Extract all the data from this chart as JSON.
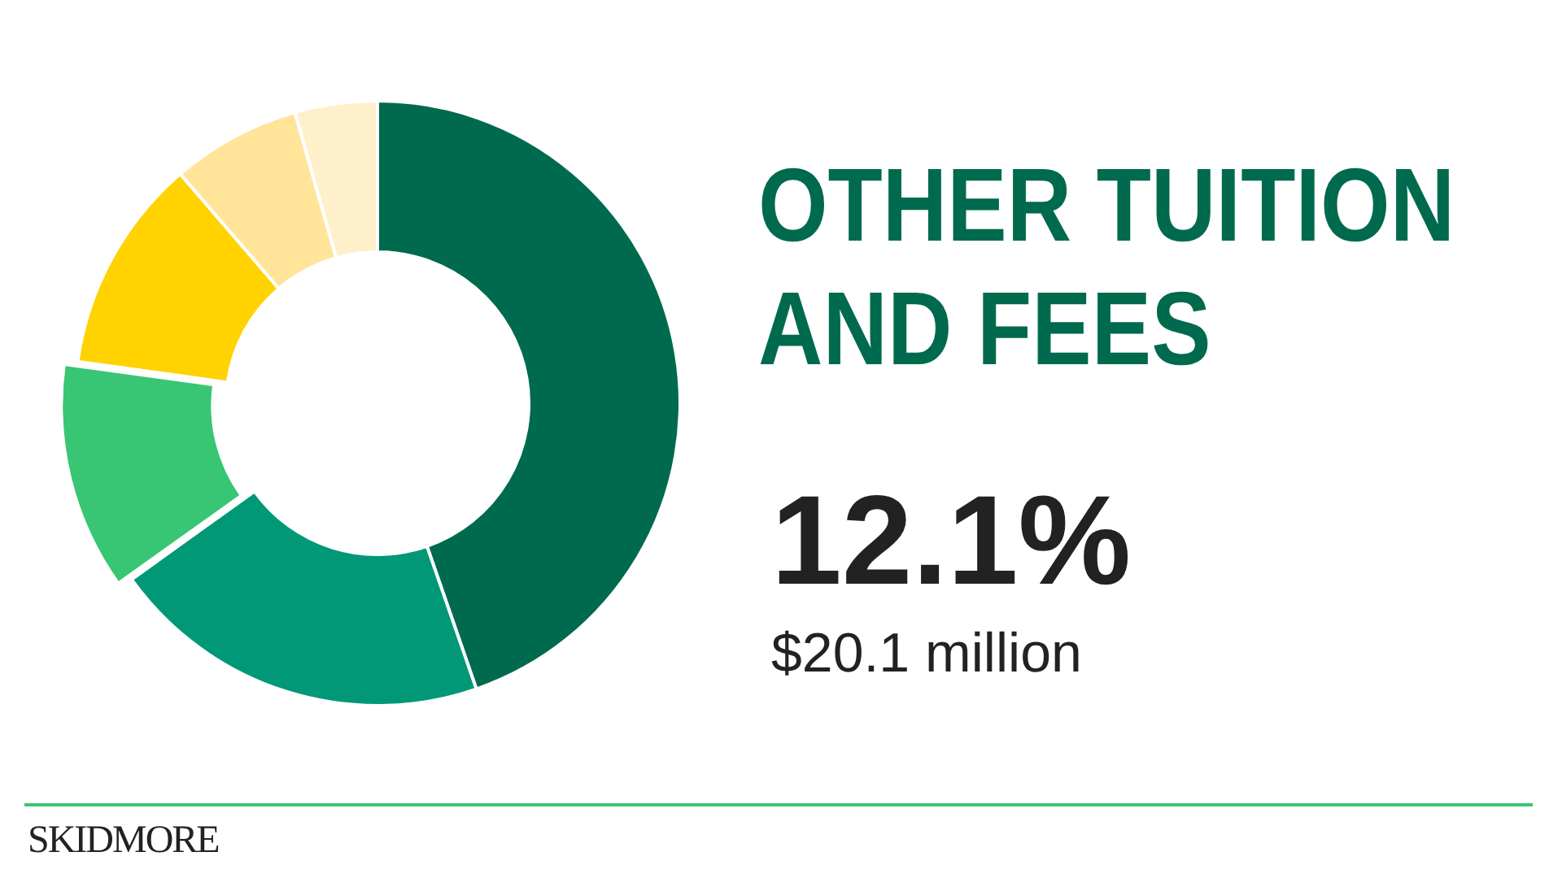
{
  "chart_data": {
    "type": "donut",
    "title": "OTHER TUITION AND FEES",
    "categories": [
      null,
      null,
      null,
      null,
      null,
      null
    ],
    "values": [
      44.7,
      20.4,
      12.1,
      11.5,
      6.9,
      4.4
    ],
    "colors": [
      "#006a4e",
      "#009877",
      "#38c674",
      "#ffd200",
      "#ffe49a",
      "#fff0cc"
    ],
    "annotations": [
      "12.1%",
      "$20.1 million",
      "SKIDMORE"
    ],
    "legend": false
  }
}
